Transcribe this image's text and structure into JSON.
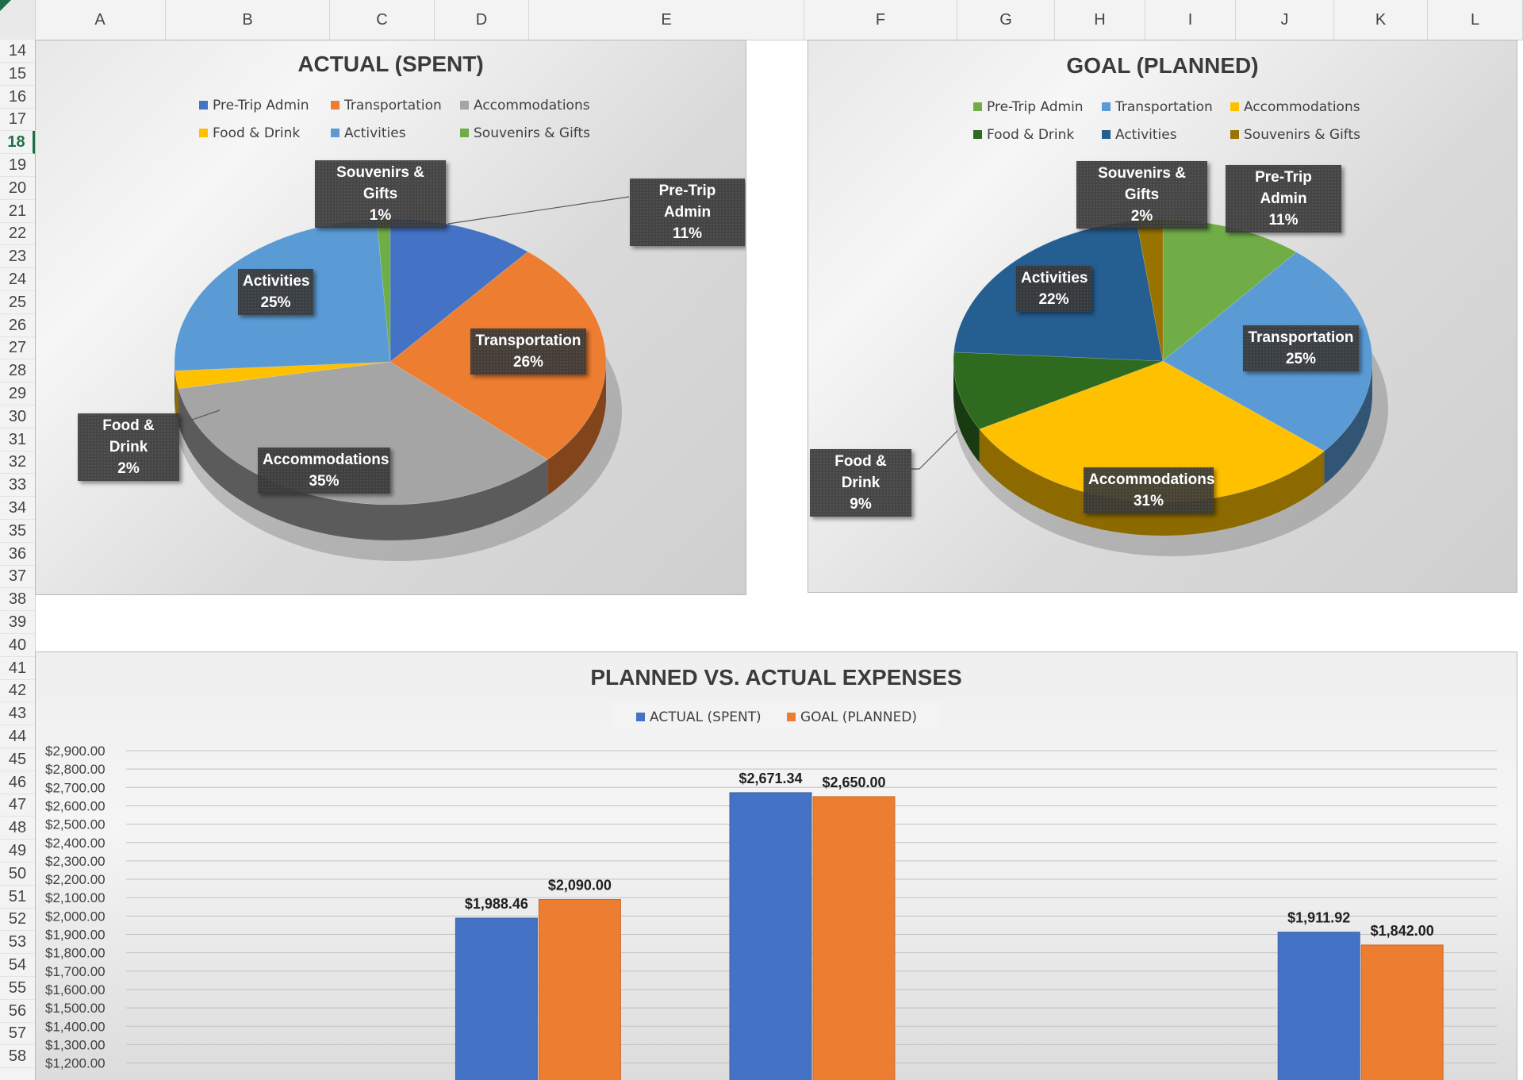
{
  "spreadsheet": {
    "columns": [
      "A",
      "B",
      "C",
      "D",
      "E",
      "F",
      "G",
      "H",
      "I",
      "J",
      "K",
      "L"
    ],
    "rows": [
      14,
      15,
      16,
      17,
      18,
      19,
      20,
      21,
      22,
      23,
      24,
      25,
      26,
      27,
      28,
      29,
      30,
      31,
      32,
      33,
      34,
      35,
      36,
      37,
      38,
      39,
      40,
      41,
      42,
      43,
      44,
      45,
      46,
      47,
      48,
      49,
      50,
      51,
      52,
      53,
      54,
      55,
      56,
      57,
      58
    ],
    "selected_row": 18
  },
  "colors": {
    "pre_trip_admin_actual": "#4472c4",
    "transportation_actual": "#ed7d31",
    "accommodations_actual": "#a5a5a5",
    "food_drink_actual": "#ffc000",
    "activities_actual": "#5b9bd5",
    "souvenirs_actual": "#70ad47",
    "pre_trip_admin_goal": "#70ad47",
    "transportation_goal": "#5b9bd5",
    "accommodations_goal": "#ffc000",
    "food_drink_goal": "#2e6b1f",
    "activities_goal": "#255e91",
    "souvenirs_goal": "#997300",
    "bar_actual": "#4472c4",
    "bar_goal": "#ed7d31"
  },
  "chart_data": [
    {
      "type": "pie",
      "title": "ACTUAL (SPENT)",
      "categories": [
        "Pre-Trip Admin",
        "Transportation",
        "Accommodations",
        "Food & Drink",
        "Activities",
        "Souvenirs & Gifts"
      ],
      "values": [
        11,
        26,
        35,
        2,
        25,
        1
      ],
      "value_labels": [
        "11%",
        "26%",
        "35%",
        "2%",
        "25%",
        "1%"
      ],
      "legend": [
        "Pre-Trip Admin",
        "Transportation",
        "Accommodations",
        "Food & Drink",
        "Activities",
        "Souvenirs & Gifts"
      ],
      "legend_position": "top",
      "three_d": true
    },
    {
      "type": "pie",
      "title": "GOAL (PLANNED)",
      "categories": [
        "Pre-Trip Admin",
        "Transportation",
        "Accommodations",
        "Food & Drink",
        "Activities",
        "Souvenirs & Gifts"
      ],
      "values": [
        11,
        25,
        31,
        9,
        22,
        2
      ],
      "value_labels": [
        "11%",
        "25%",
        "31%",
        "9%",
        "22%",
        "2%"
      ],
      "legend": [
        "Pre-Trip Admin",
        "Transportation",
        "Accommodations",
        "Food & Drink",
        "Activities",
        "Souvenirs & Gifts"
      ],
      "legend_position": "top",
      "three_d": true
    },
    {
      "type": "bar",
      "title": "PLANNED VS. ACTUAL EXPENSES",
      "categories": [
        "",
        "",
        "",
        "",
        ""
      ],
      "series": [
        {
          "name": "ACTUAL (SPENT)",
          "values": [
            null,
            1988.46,
            2671.34,
            null,
            1911.92
          ],
          "labels": [
            "",
            "$1,988.46",
            "$2,671.34",
            "",
            "$1,911.92"
          ]
        },
        {
          "name": "GOAL (PLANNED)",
          "values": [
            null,
            2090.0,
            2650.0,
            null,
            1842.0
          ],
          "labels": [
            "",
            "$2,090.00",
            "$2,650.00",
            "",
            "$1,842.00"
          ]
        }
      ],
      "ylim": [
        1100,
        2900
      ],
      "yticks": [
        "$1,200.00",
        "$1,300.00",
        "$1,400.00",
        "$1,500.00",
        "$1,600.00",
        "$1,700.00",
        "$1,800.00",
        "$1,900.00",
        "$2,000.00",
        "$2,100.00",
        "$2,200.00",
        "$2,300.00",
        "$2,400.00",
        "$2,500.00",
        "$2,600.00",
        "$2,700.00",
        "$2,800.00",
        "$2,900.00"
      ],
      "legend_position": "top",
      "grid": true
    }
  ]
}
